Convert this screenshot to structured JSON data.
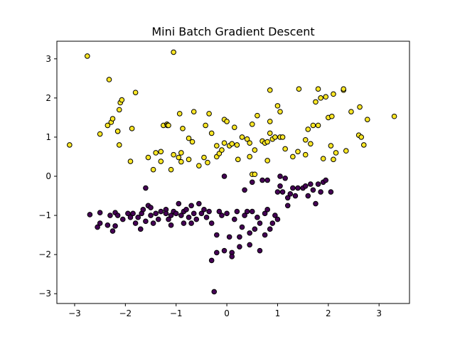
{
  "chart_data": {
    "type": "scatter",
    "title": "Mini Batch Gradient Descent",
    "xlabel": "",
    "ylabel": "",
    "xlim": [
      -3.35,
      3.6
    ],
    "ylim": [
      -3.25,
      3.45
    ],
    "xticks": [
      -3,
      -2,
      -1,
      0,
      1,
      2,
      3
    ],
    "yticks": [
      -3,
      -2,
      -1,
      0,
      1,
      2,
      3
    ],
    "grid": false,
    "colors": {
      "class_1": "#fde725",
      "class_0": "#440154",
      "edge": "#000000"
    },
    "series": [
      {
        "class": "class_1",
        "points": [
          [
            -3.1,
            0.8
          ],
          [
            -2.75,
            3.07
          ],
          [
            -2.5,
            1.08
          ],
          [
            -2.35,
            1.3
          ],
          [
            -2.32,
            2.47
          ],
          [
            -2.28,
            1.38
          ],
          [
            -2.25,
            1.47
          ],
          [
            -2.15,
            1.15
          ],
          [
            -2.12,
            1.7
          ],
          [
            -2.1,
            1.88
          ],
          [
            -2.07,
            1.95
          ],
          [
            -2.12,
            0.8
          ],
          [
            -2.15,
            1.15
          ],
          [
            -1.9,
            0.38
          ],
          [
            -1.87,
            1.22
          ],
          [
            -1.8,
            2.14
          ],
          [
            -1.55,
            0.48
          ],
          [
            -1.45,
            0.17
          ],
          [
            -1.4,
            0.6
          ],
          [
            -1.3,
            0.38
          ],
          [
            -1.3,
            0.63
          ],
          [
            -1.25,
            1.3
          ],
          [
            -1.18,
            1.33
          ],
          [
            -1.17,
            1.3
          ],
          [
            -1.15,
            1.3
          ],
          [
            -1.1,
            0.17
          ],
          [
            -1.05,
            0.55
          ],
          [
            -1.05,
            3.17
          ],
          [
            -0.95,
            0.48
          ],
          [
            -0.9,
            0.6
          ],
          [
            -0.93,
            1.6
          ],
          [
            -0.87,
            1.22
          ],
          [
            -0.9,
            0.37
          ],
          [
            -0.75,
            0.97
          ],
          [
            -0.75,
            0.43
          ],
          [
            -0.68,
            0.88
          ],
          [
            -0.65,
            1.65
          ],
          [
            -0.55,
            0.27
          ],
          [
            -0.45,
            0.48
          ],
          [
            -0.42,
            1.3
          ],
          [
            -0.38,
            0.35
          ],
          [
            -0.35,
            1.6
          ],
          [
            -0.3,
            1.1
          ],
          [
            -0.2,
            0.78
          ],
          [
            -0.2,
            0.5
          ],
          [
            -0.15,
            0.58
          ],
          [
            -0.1,
            0.67
          ],
          [
            -0.05,
            0.85
          ],
          [
            -0.05,
            1.45
          ],
          [
            0.0,
            1.4
          ],
          [
            0.05,
            0.78
          ],
          [
            0.1,
            0.83
          ],
          [
            0.15,
            1.25
          ],
          [
            0.2,
            0.8
          ],
          [
            0.22,
            0.43
          ],
          [
            0.3,
            1.0
          ],
          [
            0.4,
            0.95
          ],
          [
            0.45,
            0.5
          ],
          [
            0.45,
            0.85
          ],
          [
            0.5,
            1.33
          ],
          [
            0.5,
            0.05
          ],
          [
            0.55,
            0.05
          ],
          [
            0.55,
            0.67
          ],
          [
            0.6,
            1.55
          ],
          [
            0.7,
            0.9
          ],
          [
            0.75,
            0.85
          ],
          [
            0.8,
            0.4
          ],
          [
            0.8,
            0.88
          ],
          [
            0.85,
            1.1
          ],
          [
            0.85,
            1.4
          ],
          [
            0.85,
            2.2
          ],
          [
            0.9,
            0.95
          ],
          [
            0.95,
            1.0
          ],
          [
            1.0,
            1.8
          ],
          [
            1.05,
            1.0
          ],
          [
            1.05,
            1.65
          ],
          [
            1.1,
            1.0
          ],
          [
            1.15,
            0.7
          ],
          [
            1.3,
            0.5
          ],
          [
            1.4,
            0.63
          ],
          [
            1.42,
            2.23
          ],
          [
            1.55,
            0.55
          ],
          [
            1.55,
            0.93
          ],
          [
            1.6,
            1.2
          ],
          [
            1.65,
            0.83
          ],
          [
            1.7,
            1.3
          ],
          [
            1.75,
            1.9
          ],
          [
            1.8,
            2.23
          ],
          [
            1.8,
            1.3
          ],
          [
            1.85,
            2.0
          ],
          [
            1.9,
            0.45
          ],
          [
            1.95,
            2.03
          ],
          [
            2.0,
            1.5
          ],
          [
            2.05,
            0.78
          ],
          [
            2.07,
            1.53
          ],
          [
            2.1,
            0.43
          ],
          [
            2.1,
            2.1
          ],
          [
            2.15,
            0.6
          ],
          [
            2.3,
            2.2
          ],
          [
            2.3,
            2.23
          ],
          [
            2.35,
            0.65
          ],
          [
            2.45,
            1.65
          ],
          [
            2.6,
            1.05
          ],
          [
            2.62,
            1.77
          ],
          [
            2.65,
            1.0
          ],
          [
            2.7,
            0.8
          ],
          [
            2.77,
            1.45
          ],
          [
            3.3,
            1.53
          ]
        ]
      },
      {
        "class": "class_0",
        "points": [
          [
            -2.7,
            -0.98
          ],
          [
            -2.55,
            -1.3
          ],
          [
            -2.5,
            -0.93
          ],
          [
            -2.5,
            -1.2
          ],
          [
            -2.35,
            -1.25
          ],
          [
            -2.3,
            -1.0
          ],
          [
            -2.25,
            -1.4
          ],
          [
            -2.2,
            -0.93
          ],
          [
            -2.2,
            -1.27
          ],
          [
            -2.15,
            -1.0
          ],
          [
            -2.05,
            -1.1
          ],
          [
            -1.95,
            -0.95
          ],
          [
            -1.9,
            -1.05
          ],
          [
            -1.85,
            -0.95
          ],
          [
            -1.8,
            -1.2
          ],
          [
            -1.75,
            -1.05
          ],
          [
            -1.7,
            -1.35
          ],
          [
            -1.68,
            -0.95
          ],
          [
            -1.65,
            -0.85
          ],
          [
            -1.6,
            -0.3
          ],
          [
            -1.6,
            -1.15
          ],
          [
            -1.55,
            -0.75
          ],
          [
            -1.5,
            -0.8
          ],
          [
            -1.5,
            -1.0
          ],
          [
            -1.45,
            -1.2
          ],
          [
            -1.4,
            -0.95
          ],
          [
            -1.35,
            -1.1
          ],
          [
            -1.3,
            -0.9
          ],
          [
            -1.2,
            -0.85
          ],
          [
            -1.2,
            -0.95
          ],
          [
            -1.15,
            -1.1
          ],
          [
            -1.1,
            -1.25
          ],
          [
            -1.1,
            -1.0
          ],
          [
            -1.05,
            -0.9
          ],
          [
            -1.0,
            -0.95
          ],
          [
            -0.95,
            -0.7
          ],
          [
            -0.9,
            -1.0
          ],
          [
            -0.85,
            -0.9
          ],
          [
            -0.85,
            -1.2
          ],
          [
            -0.8,
            -0.85
          ],
          [
            -0.75,
            -1.05
          ],
          [
            -0.7,
            -0.75
          ],
          [
            -0.7,
            -1.2
          ],
          [
            -0.65,
            -0.95
          ],
          [
            -0.6,
            -1.1
          ],
          [
            -0.55,
            -0.7
          ],
          [
            -0.5,
            -0.95
          ],
          [
            -0.45,
            -0.85
          ],
          [
            -0.4,
            -1.05
          ],
          [
            -0.35,
            -0.9
          ],
          [
            -0.3,
            -1.2
          ],
          [
            -0.3,
            -2.15
          ],
          [
            -0.25,
            -2.95
          ],
          [
            -0.2,
            -1.5
          ],
          [
            -0.2,
            -1.95
          ],
          [
            -0.15,
            -0.9
          ],
          [
            -0.1,
            -1.0
          ],
          [
            -0.05,
            -1.9
          ],
          [
            -0.05,
            0.0
          ],
          [
            0.0,
            -0.95
          ],
          [
            0.05,
            -1.55
          ],
          [
            0.1,
            -1.95
          ],
          [
            0.1,
            -2.05
          ],
          [
            0.15,
            -1.1
          ],
          [
            0.2,
            -0.9
          ],
          [
            0.25,
            -1.55
          ],
          [
            0.25,
            -1.8
          ],
          [
            0.3,
            -1.3
          ],
          [
            0.35,
            -1.0
          ],
          [
            0.35,
            -0.35
          ],
          [
            0.4,
            -0.9
          ],
          [
            0.45,
            -1.45
          ],
          [
            0.45,
            -1.75
          ],
          [
            0.5,
            -0.9
          ],
          [
            0.5,
            -0.15
          ],
          [
            0.55,
            -1.35
          ],
          [
            0.6,
            -1.05
          ],
          [
            0.65,
            -1.2
          ],
          [
            0.65,
            -1.9
          ],
          [
            0.7,
            -0.1
          ],
          [
            0.75,
            -0.95
          ],
          [
            0.75,
            -1.5
          ],
          [
            0.8,
            -0.85
          ],
          [
            0.8,
            -0.1
          ],
          [
            0.85,
            -1.35
          ],
          [
            0.9,
            -1.2
          ],
          [
            0.95,
            -1.0
          ],
          [
            1.0,
            -1.1
          ],
          [
            1.0,
            -0.4
          ],
          [
            1.05,
            0.0
          ],
          [
            1.05,
            -0.25
          ],
          [
            1.1,
            -0.4
          ],
          [
            1.15,
            -0.05
          ],
          [
            1.2,
            -0.75
          ],
          [
            1.2,
            -0.55
          ],
          [
            1.25,
            -0.45
          ],
          [
            1.3,
            -0.3
          ],
          [
            1.35,
            -0.5
          ],
          [
            1.4,
            -0.3
          ],
          [
            1.5,
            -0.3
          ],
          [
            1.55,
            -0.25
          ],
          [
            1.6,
            -0.5
          ],
          [
            1.65,
            -0.2
          ],
          [
            1.7,
            -0.35
          ],
          [
            1.75,
            -0.7
          ],
          [
            1.8,
            -0.2
          ],
          [
            1.85,
            -0.4
          ],
          [
            1.9,
            -0.15
          ],
          [
            1.95,
            -0.1
          ],
          [
            2.05,
            -0.4
          ]
        ]
      }
    ]
  }
}
